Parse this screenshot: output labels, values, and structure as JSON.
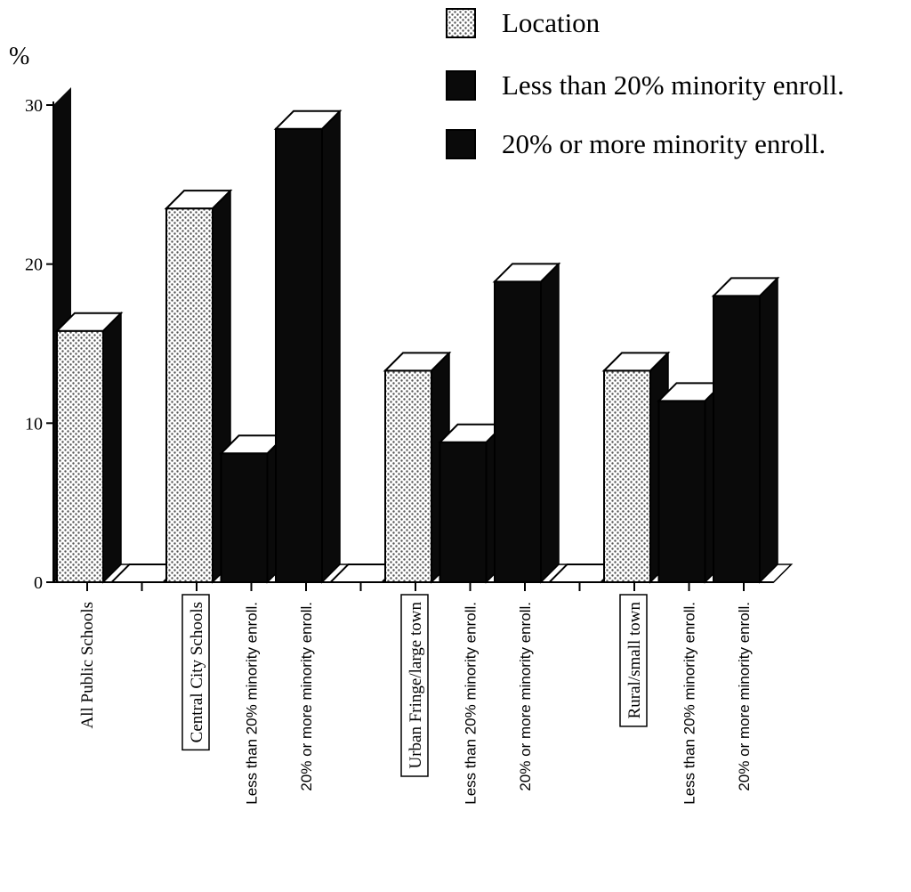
{
  "chart_data": {
    "type": "bar",
    "ylabel": "%",
    "ylim": [
      0,
      30
    ],
    "yticks": [
      0,
      10,
      20,
      30
    ],
    "legend_position": "top-right",
    "legend": [
      {
        "label": "Location",
        "style": "dotted"
      },
      {
        "label": "Less than 20% minority enroll.",
        "style": "black"
      },
      {
        "label": "20% or more minority enroll.",
        "style": "black"
      }
    ],
    "categories": [
      "All Public Schools",
      "",
      "Central City Schools",
      "Less than 20% minority enroll.",
      "20% or more minority enroll.",
      "",
      "Urban Fringe/large town",
      "Less than 20% minority enroll.",
      "20% or more minority enroll.",
      "",
      "Rural/small town",
      "Less than 20% minority enroll.",
      "20% or more minority enroll."
    ],
    "boxed_categories": [
      2,
      6,
      10
    ],
    "values": [
      15.8,
      0,
      23.5,
      8.1,
      28.5,
      0,
      13.3,
      8.8,
      18.9,
      0,
      13.3,
      11.4,
      18.0
    ],
    "bar_styles": [
      "dotted",
      "none",
      "dotted",
      "black",
      "black",
      "none",
      "dotted",
      "black",
      "black",
      "none",
      "dotted",
      "black",
      "black"
    ],
    "grid": false
  },
  "colors": {
    "dotted_fill": "#ffffff",
    "dot_color": "#555555",
    "dark_fill": "#0a0a0a",
    "axis": "#000000"
  }
}
